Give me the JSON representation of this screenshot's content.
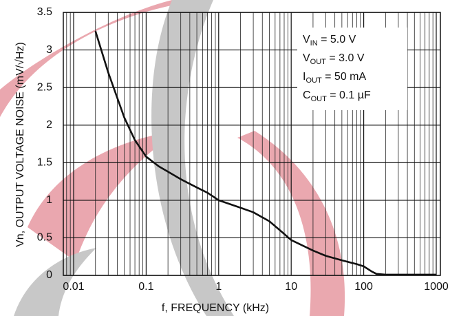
{
  "chart_data": {
    "type": "line",
    "x_label": "f, FREQUENCY (kHz)",
    "y_label": "Vn, OUTPUT VOLTAGE NOISE (mV/√Hz)",
    "annotations": [
      {
        "symbol": "V",
        "sub": "IN",
        "text": " = 5.0 V"
      },
      {
        "symbol": "V",
        "sub": "OUT",
        "text": " = 3.0 V"
      },
      {
        "symbol": "I",
        "sub": "OUT",
        "text": " = 50 mA"
      },
      {
        "symbol": "C",
        "sub": "OUT",
        "text": " = 0.1 µF"
      }
    ],
    "x": [
      0.02,
      0.03,
      0.05,
      0.07,
      0.1,
      0.15,
      0.2,
      0.3,
      0.5,
      0.7,
      1,
      2,
      3,
      5,
      7,
      10,
      20,
      30,
      50,
      80,
      100,
      130,
      150,
      200,
      500,
      1000
    ],
    "series": [
      {
        "color": "#111111",
        "values": [
          3.25,
          2.7,
          2.1,
          1.8,
          1.58,
          1.45,
          1.38,
          1.28,
          1.17,
          1.1,
          1.0,
          0.9,
          0.84,
          0.72,
          0.6,
          0.47,
          0.33,
          0.26,
          0.2,
          0.15,
          0.12,
          0.05,
          0.02,
          0.01,
          0.01,
          0.01
        ]
      }
    ],
    "xscale": "log",
    "xlim": [
      0.01,
      1000
    ],
    "xticks": [
      0.01,
      0.1,
      1,
      10,
      100,
      1000
    ],
    "ylim": [
      0,
      3.5
    ],
    "yticks": [
      0,
      0.5,
      1,
      1.5,
      2,
      2.5,
      3,
      3.5
    ],
    "grid": true,
    "minor_grid": true
  }
}
